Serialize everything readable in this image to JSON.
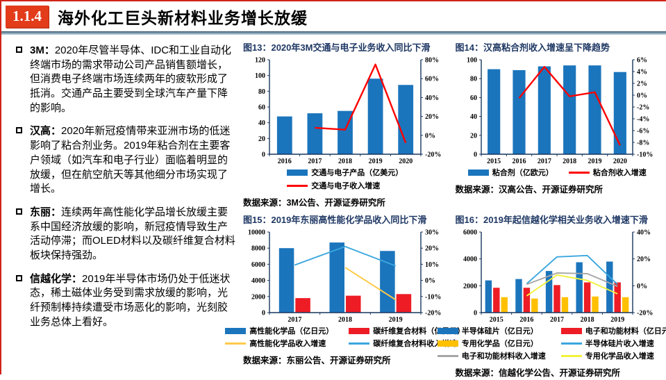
{
  "header": {
    "badge": "1.1.4",
    "title": "海外化工巨头新材料业务增长放缓"
  },
  "bullets": [
    {
      "label": "3M：",
      "text": "2020年尽管半导体、IDC和工业自动化终端市场的需求带动公司产品销售额增长，但消费电子终端市场连续两年的疲软形成了抵消。交通产品主要受到全球汽车产量下降的影响。"
    },
    {
      "label": "汉高：",
      "text": "2020年新冠疫情带来亚洲市场的低迷影响了粘合剂业务。2019年粘合剂在主要客户领域（如汽车和电子行业）面临着明显的放缓，但在航空航天等其他细分市场实现了增长。"
    },
    {
      "label": "东丽：",
      "text": "连续两年高性能化学品增长放缓主要系中国经济放缓的影响，新冠疫情导致生产活动停滞；而OLED材料以及碳纤维复合材料板块保持强劲。"
    },
    {
      "label": "信越化学：",
      "text": "2019年半导体市场仍处于低迷状态，稀土磁体业务受到需求放缓的影响，光纤预制棒持续遭受市场恶化的影响，光刻胶业务总体上看好。"
    }
  ],
  "colors": {
    "accent_red": "#E23C1B",
    "axis_navy": "#17375E",
    "title_navy": "#1F3864",
    "bar_blue": "#1B75BC",
    "bar_red": "#EE1C25",
    "bar_orange": "#FFC000",
    "line_red": "#FF0000",
    "line_light_blue": "#3BA7DE",
    "line_gold": "#FFC94A",
    "line_gray": "#A6A6A6",
    "line_yellow": "#F2F23A"
  },
  "chart_data": [
    {
      "id": "fig13",
      "type": "bar",
      "title": "图13：2020年3M交通与电子业务收入同比下滑",
      "source": "数据来源：3M公告、开源证券研究所",
      "categories": [
        "2016",
        "2017",
        "2018",
        "2019",
        "2020"
      ],
      "left_axis": {
        "min": 0,
        "max": 120,
        "step": 20
      },
      "right_axis": {
        "min": -20,
        "max": 80,
        "step": 20,
        "suffix": "%"
      },
      "legend_columns": 1,
      "series": [
        {
          "name": "交通与电子产品（亿美元）",
          "type": "bar",
          "axis": "left",
          "color": "#1B75BC",
          "values": [
            48,
            52,
            55,
            96,
            88
          ]
        },
        {
          "name": "交通与电子收入增速",
          "type": "line",
          "axis": "right",
          "color": "#FF0000",
          "values": [
            null,
            8,
            6,
            75,
            -8
          ]
        }
      ]
    },
    {
      "id": "fig14",
      "type": "bar",
      "title": "图14：汉高粘合剂收入增速呈下降趋势",
      "source": "数据来源：汉高公告、开源证券研究所",
      "categories": [
        "2015",
        "2016",
        "2017",
        "2018",
        "2019",
        "2020"
      ],
      "left_axis": {
        "min": 0,
        "max": 100,
        "step": 20
      },
      "right_axis": {
        "min": -10,
        "max": 6,
        "step": 2,
        "suffix": "%"
      },
      "legend_columns": 2,
      "series": [
        {
          "name": "粘合剂（亿欧元）",
          "type": "bar",
          "axis": "left",
          "color": "#1B75BC",
          "values": [
            90,
            89,
            93,
            94,
            94,
            87
          ]
        },
        {
          "name": "粘合剂收入增速",
          "type": "line",
          "axis": "right",
          "color": "#FF0000",
          "values": [
            null,
            -0.5,
            4.8,
            -0.2,
            0.5,
            -8.5
          ]
        }
      ]
    },
    {
      "id": "fig15",
      "type": "bar",
      "title": "图15：2019年东丽高性能化学品收入同比下滑",
      "source": "数据来源：东丽公告、开源证券研究所",
      "categories": [
        "2017",
        "2018",
        "2019"
      ],
      "left_axis": {
        "min": 0,
        "max": 10000,
        "step": 2000
      },
      "right_axis": {
        "min": -20,
        "max": 30,
        "step": 10,
        "suffix": "%"
      },
      "legend_columns": 2,
      "series": [
        {
          "name": "高性能化学品（亿日元）",
          "type": "bar",
          "axis": "left",
          "color": "#1B75BC",
          "values": [
            8000,
            8700,
            7650
          ]
        },
        {
          "name": "碳纤维复合材料（亿日元）",
          "type": "bar",
          "axis": "left",
          "color": "#EE1C25",
          "values": [
            1800,
            2100,
            2300
          ]
        },
        {
          "name": "高性能化学品收入增速",
          "type": "line",
          "axis": "right",
          "color": "#FFC94A",
          "values": [
            null,
            8,
            -12
          ]
        },
        {
          "name": "碳纤维复合材料收入增速",
          "type": "line",
          "axis": "right",
          "color": "#3BA7DE",
          "values": [
            9.5,
            21,
            9
          ]
        }
      ]
    },
    {
      "id": "fig16",
      "type": "bar",
      "title": "图16：2019年起信越化学相关业务收入增速下滑",
      "source": "数据来源：信越化学公告、开源证券研究所",
      "categories": [
        "2015",
        "2016",
        "2017",
        "2018",
        "2019"
      ],
      "left_axis": {
        "min": 0,
        "max": 6000,
        "step": 2000
      },
      "right_axis": {
        "min": -20,
        "max": 40,
        "step": 20,
        "suffix": "%"
      },
      "legend_columns": 2,
      "series": [
        {
          "name": "半导体硅片（亿日元）",
          "type": "bar",
          "axis": "left",
          "color": "#1B75BC",
          "values": [
            2400,
            2500,
            3100,
            3750,
            3800
          ]
        },
        {
          "name": "电子和功能材料（亿日元）",
          "type": "bar",
          "axis": "left",
          "color": "#EE1C25",
          "values": [
            1850,
            1850,
            2050,
            2250,
            2250
          ]
        },
        {
          "name": "专用化学品（亿日元）",
          "type": "bar",
          "axis": "left",
          "color": "#FFC000",
          "values": [
            1150,
            1050,
            1150,
            1200,
            1150
          ]
        },
        {
          "name": "半导体硅片收入增速",
          "type": "line",
          "axis": "right",
          "color": "#3BA7DE",
          "values": [
            null,
            1.5,
            21.5,
            22.5,
            1
          ]
        },
        {
          "name": "电子和功能材料收入增速",
          "type": "line",
          "axis": "right",
          "color": "#A6A6A6",
          "values": [
            null,
            1,
            9.5,
            9,
            -0.5
          ]
        },
        {
          "name": "专用化学品收入增速",
          "type": "line",
          "axis": "right",
          "color": "#F2F23A",
          "values": [
            null,
            -7.5,
            8,
            4,
            -6
          ]
        }
      ]
    }
  ]
}
